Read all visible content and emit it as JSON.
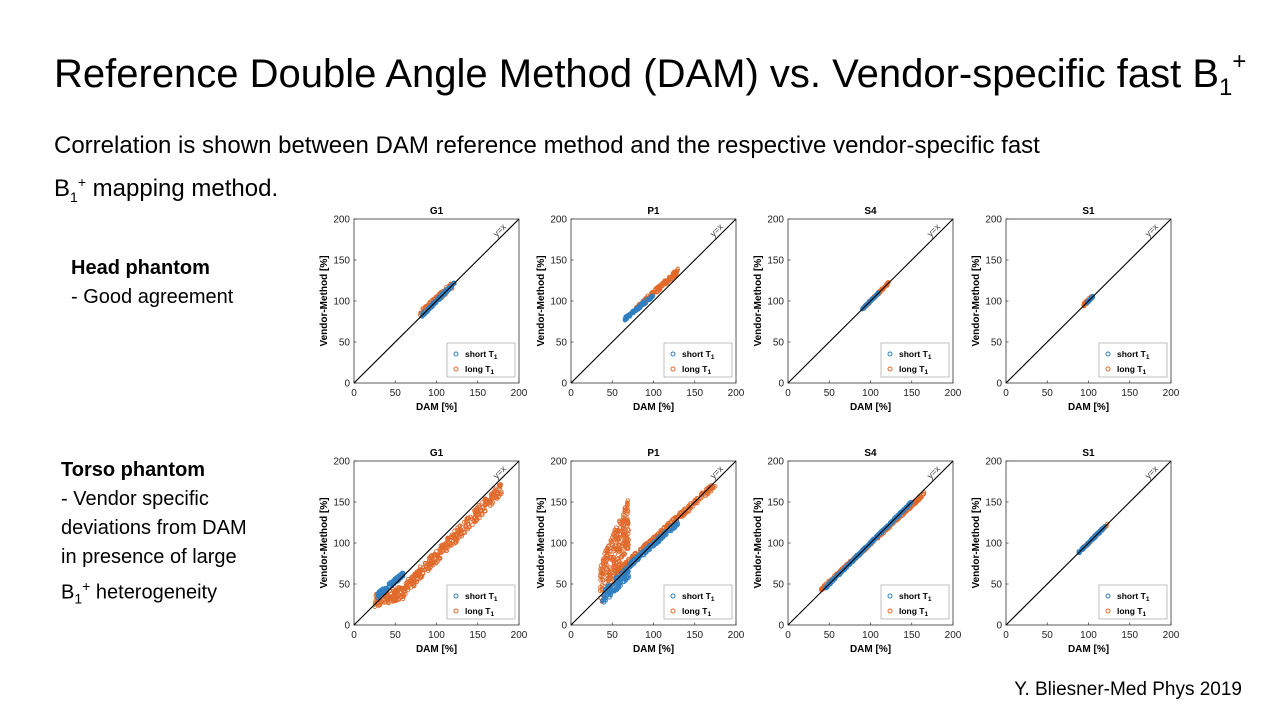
{
  "slide": {
    "title_main": "Reference Double Angle Method (DAM) vs. Vendor-specific fast B",
    "title_sub": "1",
    "title_sup": "+",
    "intro_line1": "Correlation is shown between DAM reference method and the respective vendor-specific fast",
    "intro_b": "B",
    "intro_sub": "1",
    "intro_sup": "+",
    "intro_line2": " mapping method.",
    "head_heading": "Head phantom",
    "head_text": "- Good agreement",
    "torso_heading": "Torso phantom",
    "torso_line1": "- Vendor specific",
    "torso_line2": "deviations from DAM",
    "torso_line3": "in presence of large",
    "torso_b": "B",
    "torso_sub": "1",
    "torso_sup": "+",
    "torso_line4": " heterogeneity",
    "citation": "Y. Bliesner-Med Phys 2019"
  },
  "colors": {
    "short": "#2f7fc1",
    "long": "#e06a2c",
    "identity": "#000000",
    "axis": "#333333"
  },
  "chart_data": [
    {
      "type": "scatter",
      "row": "Head phantom",
      "title": "G1",
      "xlabel": "DAM [%]",
      "ylabel": "Vendor-Method [%]",
      "xlim": [
        0,
        200
      ],
      "ylim": [
        0,
        200
      ],
      "ticks": [
        0,
        50,
        100,
        150,
        200
      ],
      "identity_label": "y=x",
      "legend": [
        "short T",
        "long T"
      ],
      "legend_sub": "1",
      "legend_position": "bottom-right",
      "series": [
        {
          "name": "short T1",
          "segments": [
            {
              "x": [
                82,
                122
              ],
              "yoff": [
                0,
                0
              ],
              "spread": 2
            }
          ]
        },
        {
          "name": "long T1",
          "segments": [
            {
              "x": [
                80,
                120
              ],
              "yoff": [
                4,
                0
              ],
              "spread": 4
            }
          ]
        }
      ]
    },
    {
      "type": "scatter",
      "row": "Head phantom",
      "title": "P1",
      "xlabel": "DAM [%]",
      "ylabel": "Vendor-Method [%]",
      "xlim": [
        0,
        200
      ],
      "ylim": [
        0,
        200
      ],
      "ticks": [
        0,
        50,
        100,
        150,
        200
      ],
      "identity_label": "y=x",
      "legend": [
        "short T",
        "long T"
      ],
      "legend_sub": "1",
      "legend_position": "bottom-right",
      "series": [
        {
          "name": "short T1",
          "segments": [
            {
              "x": [
                65,
                100
              ],
              "yoff": [
                13,
                7
              ],
              "spread": 2
            }
          ]
        },
        {
          "name": "long T1",
          "segments": [
            {
              "x": [
                75,
                130
              ],
              "yoff": [
                12,
                7
              ],
              "spread": 3
            }
          ]
        }
      ]
    },
    {
      "type": "scatter",
      "row": "Head phantom",
      "title": "S4",
      "xlabel": "DAM [%]",
      "ylabel": "Vendor-Method [%]",
      "xlim": [
        0,
        200
      ],
      "ylim": [
        0,
        200
      ],
      "ticks": [
        0,
        50,
        100,
        150,
        200
      ],
      "identity_label": "y=x",
      "legend": [
        "short T",
        "long T"
      ],
      "legend_sub": "1",
      "legend_position": "bottom-right",
      "series": [
        {
          "name": "short T1",
          "segments": [
            {
              "x": [
                90,
                110
              ],
              "yoff": [
                0,
                0
              ],
              "spread": 1
            }
          ]
        },
        {
          "name": "long T1",
          "segments": [
            {
              "x": [
                92,
                122
              ],
              "yoff": [
                0,
                0
              ],
              "spread": 1.5
            }
          ]
        }
      ]
    },
    {
      "type": "scatter",
      "row": "Head phantom",
      "title": "S1",
      "xlabel": "DAM [%]",
      "ylabel": "Vendor-Method [%]",
      "xlim": [
        0,
        200
      ],
      "ylim": [
        0,
        200
      ],
      "ticks": [
        0,
        50,
        100,
        150,
        200
      ],
      "identity_label": "y=x",
      "legend": [
        "short T",
        "long T"
      ],
      "legend_sub": "1",
      "legend_position": "bottom-right",
      "series": [
        {
          "name": "short T1",
          "segments": [
            {
              "x": [
                98,
                106
              ],
              "yoff": [
                0,
                0
              ],
              "spread": 1
            }
          ]
        },
        {
          "name": "long T1",
          "segments": [
            {
              "x": [
                94,
                104
              ],
              "yoff": [
                1,
                1
              ],
              "spread": 2
            }
          ]
        }
      ]
    },
    {
      "type": "scatter",
      "row": "Torso phantom",
      "title": "G1",
      "xlabel": "DAM [%]",
      "ylabel": "Vendor-Method [%]",
      "xlim": [
        0,
        200
      ],
      "ylim": [
        0,
        200
      ],
      "ticks": [
        0,
        50,
        100,
        150,
        200
      ],
      "identity_label": "y=x",
      "legend": [
        "short T",
        "long T"
      ],
      "legend_sub": "1",
      "legend_position": "bottom-right",
      "series": [
        {
          "name": "short T1",
          "segments": [
            {
              "x": [
                28,
                60
              ],
              "yoff": [
                8,
                2
              ],
              "spread": 3
            }
          ]
        },
        {
          "name": "long T1",
          "segments": [
            {
              "x": [
                25,
                60
              ],
              "yoff": [
                5,
                -20
              ],
              "spread": 8
            },
            {
              "x": [
                60,
                180
              ],
              "yoff": [
                -18,
                -12
              ],
              "spread": 8
            }
          ]
        }
      ]
    },
    {
      "type": "scatter",
      "row": "Torso phantom",
      "title": "P1",
      "xlabel": "DAM [%]",
      "ylabel": "Vendor-Method [%]",
      "xlim": [
        0,
        200
      ],
      "ylim": [
        0,
        200
      ],
      "ticks": [
        0,
        50,
        100,
        150,
        200
      ],
      "identity_label": "y=x",
      "legend": [
        "short T",
        "long T"
      ],
      "legend_sub": "1",
      "legend_position": "bottom-right",
      "series": [
        {
          "name": "short T1",
          "segments": [
            {
              "x": [
                38,
                70
              ],
              "yoff": [
                -5,
                -5
              ],
              "spread": 8
            },
            {
              "x": [
                70,
                130
              ],
              "yoff": [
                2,
                -5
              ],
              "spread": 3
            }
          ]
        },
        {
          "name": "long T1",
          "segments": [
            {
              "x": [
                35,
                70
              ],
              "yoff": [
                10,
                55
              ],
              "spread": 30
            },
            {
              "x": [
                55,
                175
              ],
              "yoff": [
                8,
                -3
              ],
              "spread": 4
            }
          ]
        }
      ]
    },
    {
      "type": "scatter",
      "row": "Torso phantom",
      "title": "S4",
      "xlabel": "DAM [%]",
      "ylabel": "Vendor-Method [%]",
      "xlim": [
        0,
        200
      ],
      "ylim": [
        0,
        200
      ],
      "ticks": [
        0,
        50,
        100,
        150,
        200
      ],
      "identity_label": "y=x",
      "legend": [
        "short T",
        "long T"
      ],
      "legend_sub": "1",
      "legend_position": "bottom-right",
      "series": [
        {
          "name": "short T1",
          "segments": [
            {
              "x": [
                45,
                150
              ],
              "yoff": [
                0,
                0
              ],
              "spread": 1.5
            }
          ]
        },
        {
          "name": "long T1",
          "segments": [
            {
              "x": [
                40,
                165
              ],
              "yoff": [
                3,
                -5
              ],
              "spread": 2
            }
          ]
        }
      ]
    },
    {
      "type": "scatter",
      "row": "Torso phantom",
      "title": "S1",
      "xlabel": "DAM [%]",
      "ylabel": "Vendor-Method [%]",
      "xlim": [
        0,
        200
      ],
      "ylim": [
        0,
        200
      ],
      "ticks": [
        0,
        50,
        100,
        150,
        200
      ],
      "identity_label": "y=x",
      "legend": [
        "short T",
        "long T"
      ],
      "legend_sub": "1",
      "legend_position": "bottom-right",
      "series": [
        {
          "name": "short T1",
          "segments": [
            {
              "x": [
                88,
                120
              ],
              "yoff": [
                0,
                0
              ],
              "spread": 1.5
            }
          ]
        },
        {
          "name": "long T1",
          "segments": [
            {
              "x": [
                92,
                123
              ],
              "yoff": [
                0,
                0
              ],
              "spread": 1.5
            }
          ]
        }
      ]
    }
  ]
}
